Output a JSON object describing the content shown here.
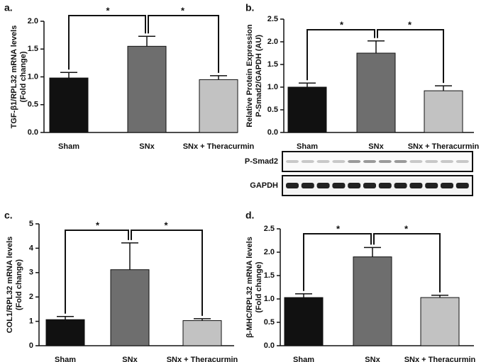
{
  "chart_data": [
    {
      "type": "bar",
      "panel_label": "a.",
      "ylabel": [
        "TGF-β1/RPL32 mRNA levels",
        "(Fold change)"
      ],
      "categories": [
        "Sham",
        "SNx",
        "SNx + Theracurmin"
      ],
      "values": [
        0.98,
        1.55,
        0.95
      ],
      "errors": [
        0.1,
        0.18,
        0.07
      ],
      "colors": [
        "#111111",
        "#6e6e6e",
        "#c2c2c2"
      ],
      "ylim": [
        0,
        2
      ],
      "yticks": [
        {
          "value": 0,
          "label": "0.0"
        },
        0.5,
        {
          "value": 1,
          "label": "1.0"
        },
        1.5,
        {
          "value": 2,
          "label": "2.0"
        }
      ],
      "annotations": [
        "*",
        "*"
      ]
    },
    {
      "type": "bar",
      "panel_label": "b.",
      "ylabel": [
        "Relative Protein Expression",
        "P-Smad2/GAPDH (AU)"
      ],
      "categories": [
        "Sham",
        "SNx",
        "SNx + Theracurmin"
      ],
      "values": [
        1.0,
        1.75,
        0.92
      ],
      "errors": [
        0.09,
        0.27,
        0.11
      ],
      "colors": [
        "#111111",
        "#6e6e6e",
        "#c2c2c2"
      ],
      "ylim": [
        0,
        2.5
      ],
      "yticks": [
        {
          "value": 0,
          "label": "0.0"
        },
        0.5,
        {
          "value": 1,
          "label": "1.0"
        },
        1.5,
        {
          "value": 2,
          "label": "2.0"
        },
        2.5
      ],
      "annotations": [
        "*",
        "*"
      ],
      "blot_labels": [
        "P-Smad2",
        "GAPDH"
      ]
    },
    {
      "type": "bar",
      "panel_label": "c.",
      "ylabel": [
        "COL1/RPL32 mRNA levels",
        "(Fold change)"
      ],
      "categories": [
        "Sham",
        "SNx",
        "SNx + Theracurmin"
      ],
      "values": [
        1.07,
        3.12,
        1.03
      ],
      "errors": [
        0.13,
        1.1,
        0.08
      ],
      "colors": [
        "#111111",
        "#6e6e6e",
        "#c2c2c2"
      ],
      "ylim": [
        0,
        5
      ],
      "yticks": [
        0,
        1,
        2,
        3,
        4,
        5
      ],
      "annotations": [
        "*",
        "*"
      ]
    },
    {
      "type": "bar",
      "panel_label": "d.",
      "ylabel": [
        "β-MHC/RPL32 mRNA levels",
        "(Fold change)"
      ],
      "categories": [
        "Sham",
        "SNx",
        "SNx + Theracurmin"
      ],
      "values": [
        1.03,
        1.9,
        1.03
      ],
      "errors": [
        0.08,
        0.2,
        0.05
      ],
      "colors": [
        "#111111",
        "#6e6e6e",
        "#c2c2c2"
      ],
      "ylim": [
        0,
        2.5
      ],
      "yticks": [
        {
          "value": 0,
          "label": "0.0"
        },
        0.5,
        {
          "value": 1,
          "label": "1.0"
        },
        1.5,
        {
          "value": 2,
          "label": "2.0"
        },
        2.5
      ],
      "annotations": [
        "*",
        "*"
      ]
    }
  ]
}
